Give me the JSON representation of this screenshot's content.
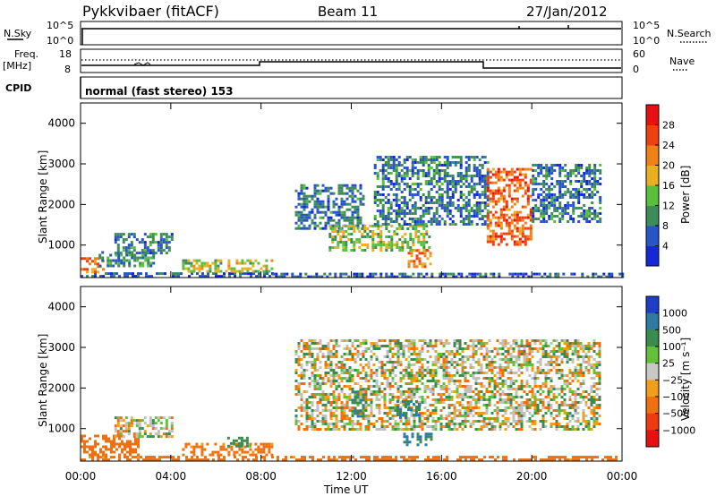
{
  "header": {
    "title": "Pykkvibaer (fitACF)",
    "beam": "Beam 11",
    "date": "27/Jan/2012"
  },
  "noise_panel": {
    "left_label": "N.Sky",
    "left_ticks": [
      "10^5",
      "10^0"
    ],
    "right_label": "N.Search",
    "right_ticks": [
      "10^5",
      "10^0"
    ]
  },
  "freq_panel": {
    "left_label_line1": "Freq.",
    "left_label_line2": "[MHz]",
    "left_ticks": [
      "18",
      "8"
    ],
    "right_label": "Nave",
    "right_ticks": [
      "60",
      "0"
    ]
  },
  "cpid_panel": {
    "label": "CPID",
    "text": "normal (fast stereo) 153"
  },
  "colors": {
    "power_scale": [
      "#1428d8",
      "#2a55c8",
      "#3e8c5a",
      "#58c03c",
      "#e8b020",
      "#f08018",
      "#f04010",
      "#e81010"
    ],
    "velocity_scale": [
      "#1e3ec8",
      "#2e7aa0",
      "#3a8c4e",
      "#64c038",
      "#c8c8c4",
      "#f0a018",
      "#f07010",
      "#f03a10",
      "#e81010"
    ],
    "ground_scatter": "#c0c0bc"
  },
  "chart_data": [
    {
      "type": "heatmap",
      "title": "",
      "xlabel": "Time UT",
      "ylabel": "Slant Range [km]",
      "x_ticks": [
        "00:00",
        "04:00",
        "08:00",
        "12:00",
        "16:00",
        "20:00",
        "00:00"
      ],
      "xlim": [
        0,
        24
      ],
      "y_ticks": [
        "1000",
        "2000",
        "3000",
        "4000"
      ],
      "ylim": [
        200,
        4500
      ],
      "colorbar": {
        "label": "Power [dB]",
        "tick_labels": [
          "28",
          "24",
          "20",
          "16",
          "12",
          "8",
          "4"
        ],
        "range": [
          0,
          32
        ]
      },
      "echo_regions": [
        {
          "t_start": 0.0,
          "t_end": 8.5,
          "range_min": 200,
          "range_max": 330,
          "value": 6
        },
        {
          "t_start": 0.0,
          "t_end": 1.0,
          "range_min": 330,
          "range_max": 700,
          "value": 22
        },
        {
          "t_start": 0.8,
          "t_end": 3.2,
          "range_min": 500,
          "range_max": 850,
          "value": 10
        },
        {
          "t_start": 1.5,
          "t_end": 4.0,
          "range_min": 800,
          "range_max": 1300,
          "value": 8
        },
        {
          "t_start": 4.5,
          "t_end": 8.5,
          "range_min": 350,
          "range_max": 650,
          "value": 16
        },
        {
          "t_start": 8.5,
          "t_end": 24.0,
          "range_min": 200,
          "range_max": 320,
          "value": 6
        },
        {
          "t_start": 9.5,
          "t_end": 12.5,
          "range_min": 1400,
          "range_max": 2500,
          "value": 8
        },
        {
          "t_start": 11.0,
          "t_end": 15.5,
          "range_min": 900,
          "range_max": 1500,
          "value": 14
        },
        {
          "t_start": 13.0,
          "t_end": 18.0,
          "range_min": 1500,
          "range_max": 3200,
          "value": 8
        },
        {
          "t_start": 14.5,
          "t_end": 15.5,
          "range_min": 500,
          "range_max": 900,
          "value": 22
        },
        {
          "t_start": 18.0,
          "t_end": 20.0,
          "range_min": 1000,
          "range_max": 2900,
          "value": 24
        },
        {
          "t_start": 20.0,
          "t_end": 23.0,
          "range_min": 1600,
          "range_max": 3000,
          "value": 8
        }
      ]
    },
    {
      "type": "heatmap",
      "title": "",
      "xlabel": "Time UT",
      "ylabel": "Slant Range [km]",
      "x_ticks": [
        "00:00",
        "04:00",
        "08:00",
        "12:00",
        "16:00",
        "20:00",
        "00:00"
      ],
      "xlim": [
        0,
        24
      ],
      "y_ticks": [
        "1000",
        "2000",
        "3000",
        "4000"
      ],
      "ylim": [
        200,
        4500
      ],
      "colorbar": {
        "label": "Velocity [m s⁻¹]",
        "tick_labels": [
          "1000",
          "500",
          "100",
          "25",
          "−25",
          "−100",
          "−500",
          "−1000"
        ],
        "range": [
          -1000,
          1000
        ]
      },
      "echo_regions": [
        {
          "t_start": 0.0,
          "t_end": 24.0,
          "range_min": 200,
          "range_max": 330,
          "value": -150
        },
        {
          "t_start": 0.0,
          "t_end": 2.5,
          "range_min": 330,
          "range_max": 850,
          "value": -200
        },
        {
          "t_start": 1.5,
          "t_end": 4.0,
          "range_min": 800,
          "range_max": 1300,
          "value": 0
        },
        {
          "t_start": 4.5,
          "t_end": 8.5,
          "range_min": 350,
          "range_max": 650,
          "value": -150
        },
        {
          "t_start": 6.5,
          "t_end": 7.5,
          "range_min": 600,
          "range_max": 800,
          "value": 150
        },
        {
          "t_start": 9.5,
          "t_end": 23.0,
          "range_min": 1000,
          "range_max": 3200,
          "value": 0
        },
        {
          "t_start": 12.0,
          "t_end": 12.5,
          "range_min": 1300,
          "range_max": 2000,
          "value": 300
        },
        {
          "t_start": 14.3,
          "t_end": 15.5,
          "range_min": 600,
          "range_max": 900,
          "value": 350
        },
        {
          "t_start": 14.0,
          "t_end": 15.0,
          "range_min": 1300,
          "range_max": 1700,
          "value": 300
        }
      ]
    }
  ]
}
